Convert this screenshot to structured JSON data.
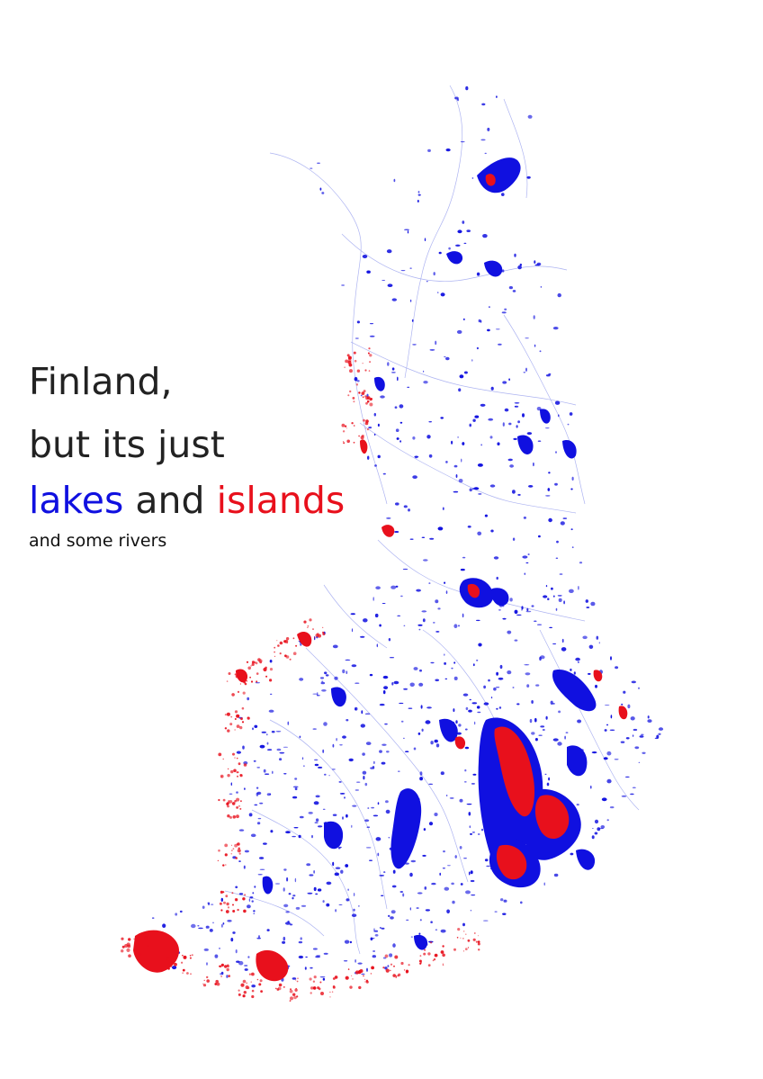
{
  "title": {
    "line1": "Finland,",
    "line2": "but its just",
    "lakes_word": "lakes",
    "and_word": " and ",
    "islands_word": "islands",
    "subtitle": "and some rivers"
  },
  "legend_colors": {
    "lakes": "#1010e0",
    "islands": "#e8101c",
    "rivers": "#8a92e6",
    "text": "#222222"
  }
}
